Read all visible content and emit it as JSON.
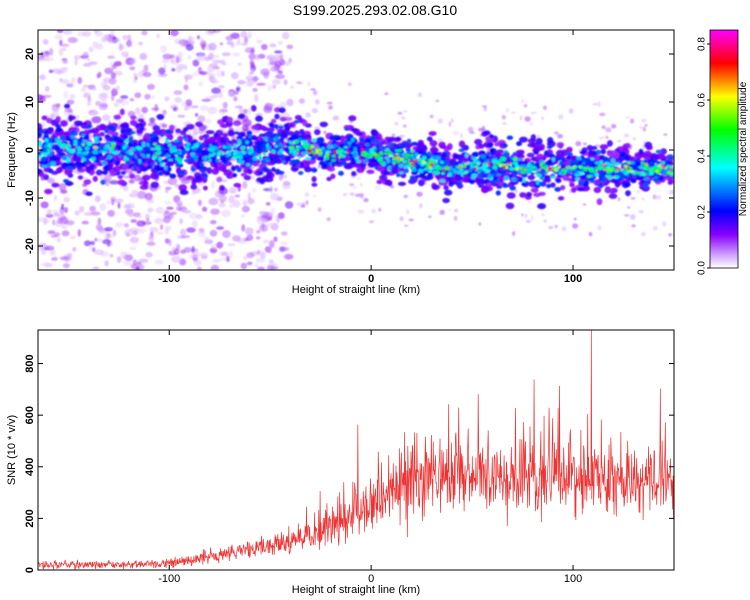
{
  "title": "S199.2025.293.02.08.G10",
  "chart_data": [
    {
      "type": "heatmap",
      "name": "spectrogram",
      "xlabel": "Height of straight line (km)",
      "ylabel": "Frequency (Hz)",
      "xlim": [
        -165,
        150
      ],
      "ylim": [
        -25,
        25
      ],
      "xticks": [
        -100,
        0,
        100
      ],
      "yticks": [
        -20,
        -10,
        0,
        10,
        20
      ],
      "colorbar": {
        "label": "Normalized spectral amplitude",
        "range": [
          0.0,
          0.85
        ],
        "ticks": [
          "0.0",
          "0.2",
          "0.4",
          "0.6",
          "0.8"
        ],
        "colormap": [
          "#ffffff",
          "#9933ff",
          "#0000ff",
          "#00ffff",
          "#00ff00",
          "#ffff00",
          "#ff0000",
          "#ff00ff"
        ]
      },
      "centerline": {
        "x": [
          -165,
          -120,
          -80,
          -40,
          -20,
          -10,
          0,
          20,
          40,
          60,
          80,
          100,
          120,
          150
        ],
        "freq_hz": [
          0,
          0,
          -1,
          1,
          -1,
          0,
          -1,
          -2,
          -4,
          -3,
          -4,
          -4,
          -4,
          -4
        ]
      },
      "band_halfwidth_hz": [
        6,
        5,
        5,
        5,
        4,
        4,
        4,
        4,
        4,
        5,
        5,
        4,
        4,
        3
      ]
    },
    {
      "type": "line",
      "name": "snr",
      "xlabel": "Height of straight line (km)",
      "ylabel": "SNR (10 * v/v)",
      "xlim": [
        -165,
        150
      ],
      "ylim": [
        0,
        930
      ],
      "xticks": [
        -100,
        0,
        100
      ],
      "yticks": [
        0,
        200,
        400,
        600,
        800
      ],
      "color": "#ee3333",
      "series": [
        {
          "name": "SNR",
          "x": [
            -165,
            -140,
            -120,
            -100,
            -90,
            -80,
            -70,
            -60,
            -50,
            -40,
            -30,
            -20,
            -10,
            0,
            10,
            20,
            30,
            40,
            50,
            60,
            70,
            80,
            90,
            100,
            110,
            120,
            130,
            140,
            150
          ],
          "y": [
            20,
            20,
            22,
            25,
            40,
            55,
            65,
            80,
            95,
            110,
            125,
            170,
            220,
            270,
            290,
            320,
            350,
            360,
            365,
            370,
            370,
            365,
            360,
            355,
            350,
            345,
            340,
            340,
            345
          ]
        }
      ],
      "peak": {
        "x": 109,
        "y": 930
      }
    }
  ]
}
